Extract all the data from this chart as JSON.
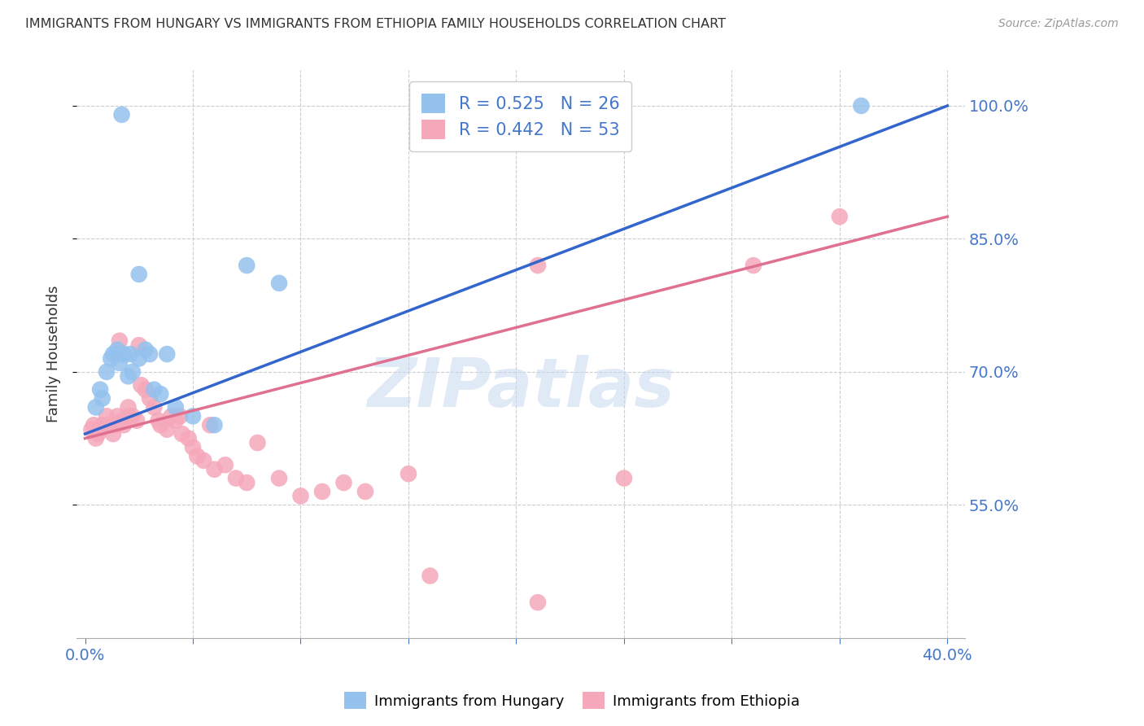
{
  "title": "IMMIGRANTS FROM HUNGARY VS IMMIGRANTS FROM ETHIOPIA FAMILY HOUSEHOLDS CORRELATION CHART",
  "source": "Source: ZipAtlas.com",
  "ylabel": "Family Households",
  "xlim": [
    -0.004,
    0.408
  ],
  "ylim": [
    0.4,
    1.04
  ],
  "yticks": [
    0.55,
    0.7,
    0.85,
    1.0
  ],
  "ytick_labels": [
    "55.0%",
    "70.0%",
    "85.0%",
    "100.0%"
  ],
  "xtick_vals": [
    0.0,
    0.05,
    0.1,
    0.15,
    0.2,
    0.25,
    0.3,
    0.35,
    0.4
  ],
  "xtick_labels": [
    "0.0%",
    "",
    "",
    "",
    "",
    "",
    "",
    "",
    "40.0%"
  ],
  "hungary_R": 0.525,
  "hungary_N": 26,
  "ethiopia_R": 0.442,
  "ethiopia_N": 53,
  "hungary_color": "#94C1EE",
  "ethiopia_color": "#F5A8BA",
  "hungary_line_color": "#3366CC",
  "ethiopia_line_color": "#E07090",
  "watermark": "ZIPatlas",
  "watermark_color": "#C8D8F0",
  "hungary_line_x0": 0.0,
  "hungary_line_y0": 0.63,
  "hungary_line_x1": 0.4,
  "hungary_line_y1": 1.0,
  "ethiopia_line_x0": 0.0,
  "ethiopia_line_y0": 0.625,
  "ethiopia_line_x1": 0.4,
  "ethiopia_line_y1": 0.875,
  "hungary_x": [
    0.005,
    0.007,
    0.008,
    0.01,
    0.012,
    0.013,
    0.015,
    0.016,
    0.017,
    0.018,
    0.02,
    0.021,
    0.022,
    0.025,
    0.028,
    0.03,
    0.032,
    0.035,
    0.038,
    0.042,
    0.05,
    0.06,
    0.075,
    0.09,
    0.025,
    0.36
  ],
  "hungary_y": [
    0.66,
    0.68,
    0.67,
    0.7,
    0.715,
    0.72,
    0.725,
    0.71,
    0.99,
    0.72,
    0.695,
    0.72,
    0.7,
    0.715,
    0.725,
    0.72,
    0.68,
    0.675,
    0.72,
    0.66,
    0.65,
    0.64,
    0.82,
    0.8,
    0.81,
    1.0
  ],
  "ethiopia_x": [
    0.003,
    0.004,
    0.005,
    0.006,
    0.007,
    0.008,
    0.01,
    0.01,
    0.012,
    0.013,
    0.014,
    0.015,
    0.016,
    0.017,
    0.018,
    0.02,
    0.02,
    0.022,
    0.024,
    0.025,
    0.026,
    0.028,
    0.03,
    0.032,
    0.034,
    0.035,
    0.038,
    0.04,
    0.042,
    0.044,
    0.045,
    0.048,
    0.05,
    0.052,
    0.055,
    0.058,
    0.06,
    0.065,
    0.07,
    0.075,
    0.08,
    0.09,
    0.1,
    0.11,
    0.12,
    0.13,
    0.15,
    0.16,
    0.21,
    0.25,
    0.31,
    0.35,
    0.21
  ],
  "ethiopia_y": [
    0.635,
    0.64,
    0.625,
    0.63,
    0.635,
    0.64,
    0.65,
    0.64,
    0.64,
    0.63,
    0.64,
    0.65,
    0.735,
    0.645,
    0.64,
    0.66,
    0.65,
    0.65,
    0.645,
    0.73,
    0.685,
    0.68,
    0.67,
    0.66,
    0.645,
    0.64,
    0.635,
    0.65,
    0.645,
    0.65,
    0.63,
    0.625,
    0.615,
    0.605,
    0.6,
    0.64,
    0.59,
    0.595,
    0.58,
    0.575,
    0.62,
    0.58,
    0.56,
    0.565,
    0.575,
    0.565,
    0.585,
    0.47,
    0.82,
    0.58,
    0.82,
    0.875,
    0.44
  ]
}
